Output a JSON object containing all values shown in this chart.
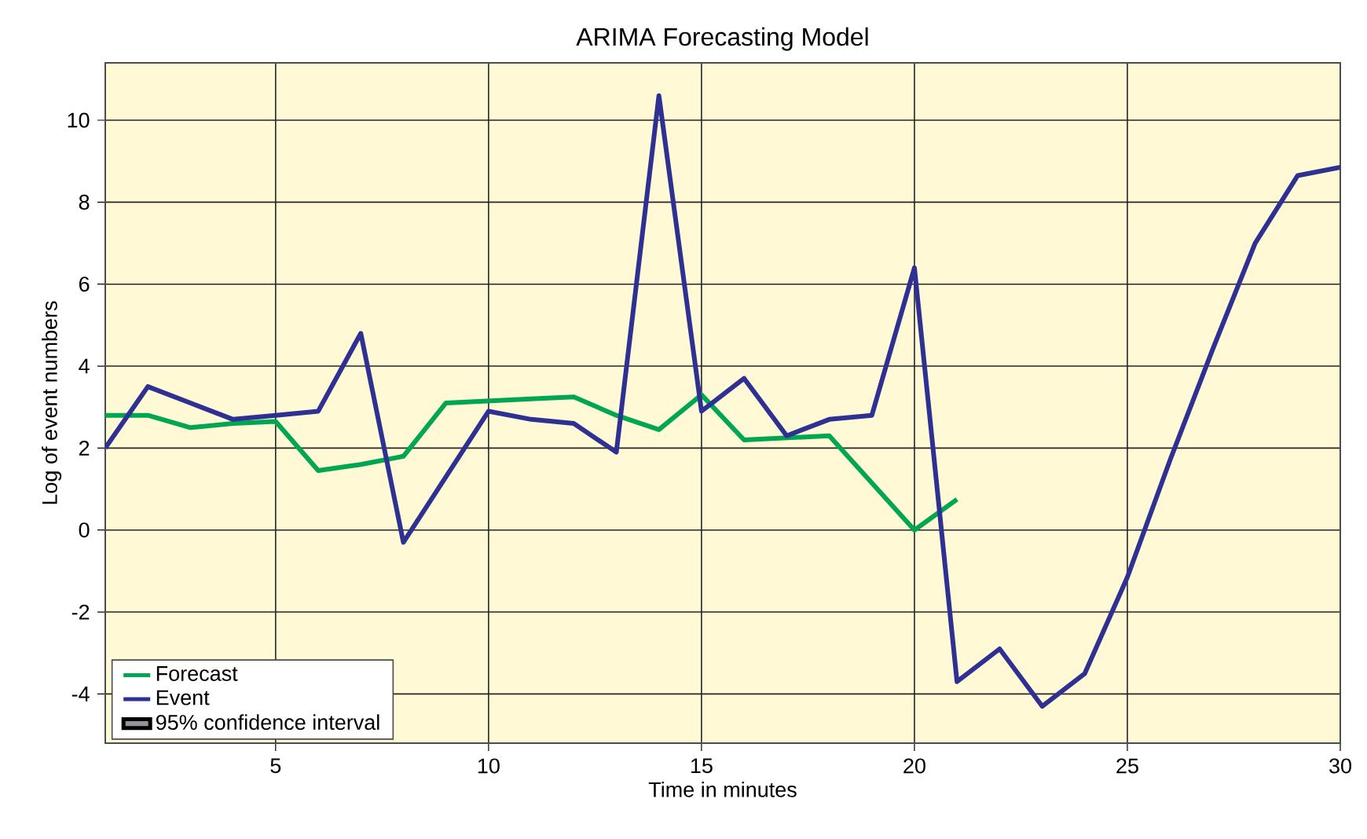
{
  "chart_data": {
    "type": "line",
    "title": "ARIMA Forecasting Model",
    "xlabel": "Time in minutes",
    "ylabel": "Log of event numbers",
    "x": [
      1,
      2,
      3,
      4,
      5,
      6,
      7,
      8,
      9,
      10,
      11,
      12,
      13,
      14,
      15,
      16,
      17,
      18,
      19,
      20,
      21,
      22,
      23,
      24,
      25,
      26,
      27,
      28,
      29,
      30
    ],
    "series": [
      {
        "name": "Forecast",
        "color": "#00a651",
        "values": [
          2.8,
          2.8,
          2.5,
          2.6,
          2.65,
          1.45,
          1.6,
          1.8,
          3.1,
          3.15,
          3.2,
          3.25,
          2.8,
          2.45,
          3.3,
          2.2,
          2.25,
          2.3,
          1.15,
          0.0,
          0.75,
          null,
          null,
          null,
          null,
          null,
          null,
          null,
          null,
          null
        ]
      },
      {
        "name": "Event",
        "color": "#2e3192",
        "values": [
          2.0,
          3.5,
          3.1,
          2.7,
          2.8,
          2.9,
          4.8,
          -0.3,
          1.3,
          2.9,
          2.7,
          2.6,
          1.9,
          10.6,
          2.9,
          3.7,
          2.3,
          2.7,
          2.8,
          6.4,
          -3.7,
          -2.9,
          -4.3,
          -3.5,
          -1.15,
          1.7,
          4.4,
          7.0,
          8.65,
          8.85
        ]
      },
      {
        "name": "95% confidence interval",
        "type": "area",
        "color": "#939598",
        "values": [
          null,
          null,
          null,
          null,
          null,
          null,
          null,
          null,
          null,
          null,
          null,
          null,
          null,
          null,
          null,
          null,
          null,
          null,
          null,
          null,
          null,
          null,
          null,
          null,
          null,
          null,
          null,
          null,
          null,
          null
        ]
      }
    ],
    "xlim": [
      1,
      30
    ],
    "ylim": [
      -5.2,
      11.4
    ],
    "xticks": [
      5,
      10,
      15,
      20,
      25,
      30
    ],
    "yticks": [
      -4,
      -2,
      0,
      2,
      4,
      6,
      8,
      10
    ],
    "grid": true,
    "legend": "bottom left",
    "line_style": "solid",
    "marker": "none"
  }
}
